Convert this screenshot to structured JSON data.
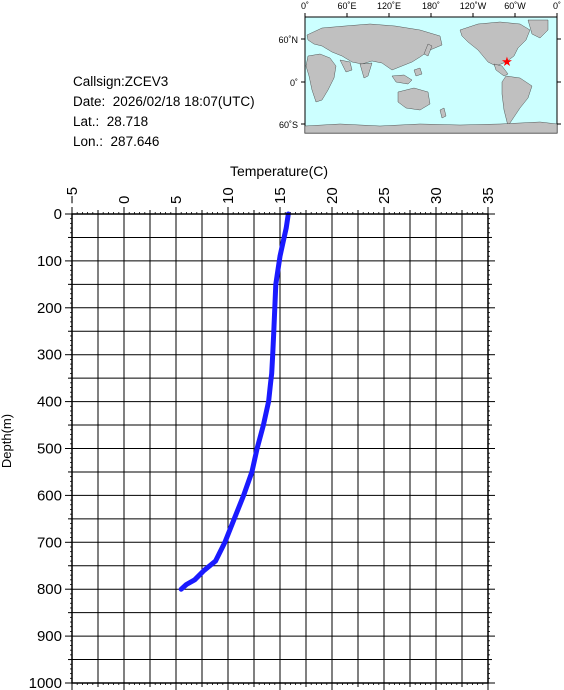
{
  "info": {
    "callsign": "Callsign:ZCEV3",
    "date_label": "Date:",
    "date_value": "2026/02/18 18:07(UTC)",
    "lat_label": "Lat.:",
    "lat_value": "28.718",
    "lon_label": "Lon.:",
    "lon_value": "287.646"
  },
  "map": {
    "lon_labels": [
      "0˚",
      "60˚E",
      "120˚E",
      "180˚",
      "120˚W",
      "60˚W",
      "0˚"
    ],
    "lat_labels": [
      "60˚N",
      "0˚",
      "60˚S"
    ],
    "ocean_color": "#ccffff",
    "land_color": "#c0c0c0",
    "marker_color": "#ff0000",
    "marker": {
      "lat": 28.718,
      "lon": 287.646
    }
  },
  "chart_data": {
    "type": "line",
    "title": "",
    "xlabel": "Temperature(C)",
    "ylabel": "Depth(m)",
    "xlim": [
      -5,
      35
    ],
    "ylim": [
      1000,
      0
    ],
    "x_ticks": [
      -5,
      0,
      5,
      10,
      15,
      20,
      25,
      30,
      35
    ],
    "y_ticks": [
      0,
      100,
      200,
      300,
      400,
      500,
      600,
      700,
      800,
      900,
      1000
    ],
    "grid": true,
    "line_color": "#1a1aff",
    "series": [
      {
        "x": [
          15.8,
          15.6,
          15.3,
          15.0,
          14.8,
          14.6,
          14.5,
          14.4,
          14.3,
          14.2,
          14.1,
          14.0,
          13.9,
          13.7,
          13.4,
          12.8,
          12.3,
          11.5,
          10.6,
          9.7,
          8.8,
          7.7,
          6.8,
          6.0,
          5.5
        ],
        "y": [
          0,
          30,
          60,
          90,
          120,
          150,
          200,
          250,
          300,
          340,
          360,
          380,
          400,
          420,
          450,
          500,
          550,
          600,
          650,
          700,
          740,
          760,
          780,
          790,
          800
        ]
      }
    ]
  }
}
